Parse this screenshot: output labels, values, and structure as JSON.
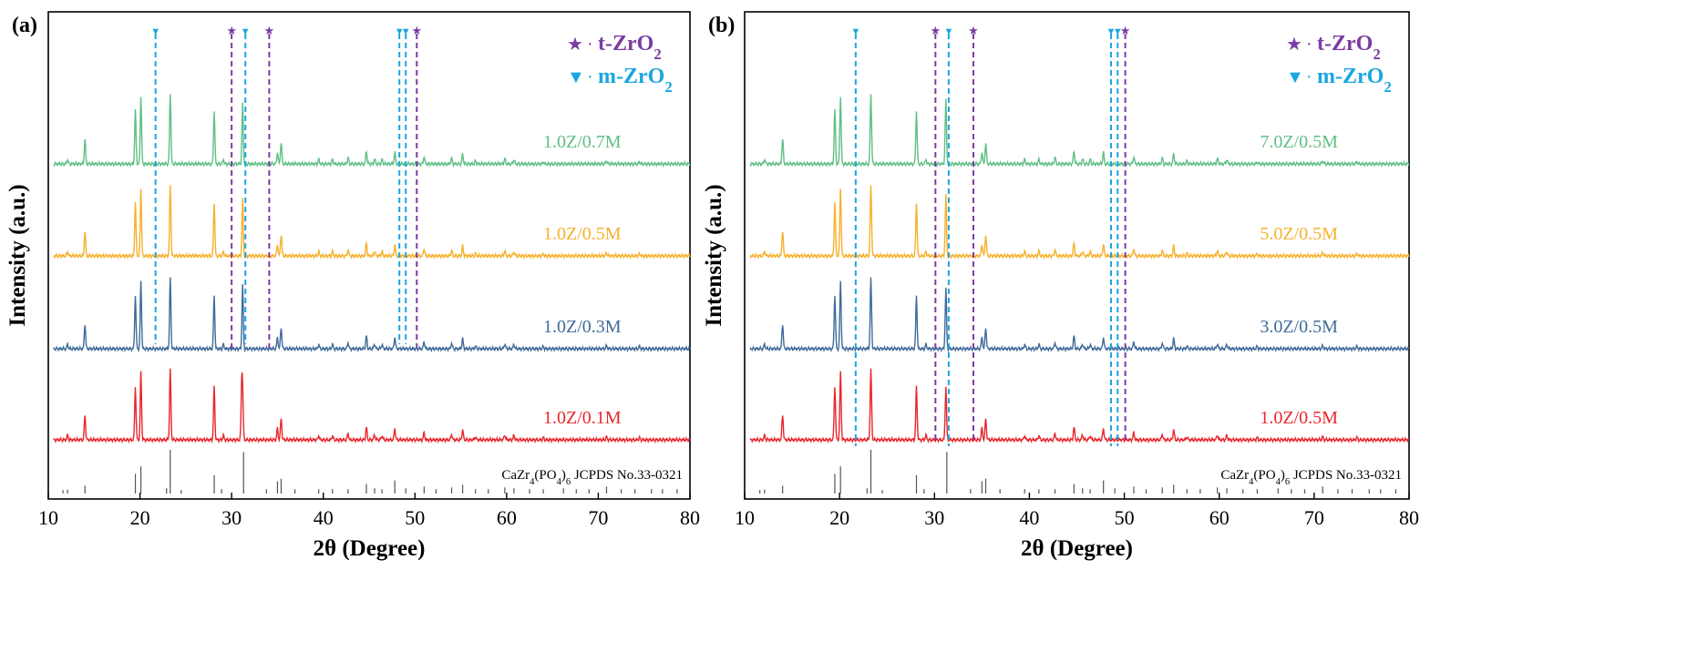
{
  "chart_data": [
    {
      "type": "line",
      "panel_label": "(a)",
      "xlabel": "2θ (Degree)",
      "ylabel": "Intensity (a.u.)",
      "xlim": [
        10,
        80
      ],
      "xticks": [
        10,
        20,
        30,
        40,
        50,
        60,
        70,
        80
      ],
      "y_ticks_shown": false,
      "legend": [
        {
          "marker": "★",
          "label": "t-ZrO2",
          "color": "#7a3ca2"
        },
        {
          "marker": "▼",
          "label": "m-ZrO2",
          "color": "#1aa6e0"
        }
      ],
      "reference_label": "CaZr4(PO4)6 JCPDS No.33-0321",
      "reference_peaks": [
        {
          "x": 11.6,
          "h": 0.08
        },
        {
          "x": 12.1,
          "h": 0.09
        },
        {
          "x": 14.0,
          "h": 0.18
        },
        {
          "x": 19.5,
          "h": 0.45
        },
        {
          "x": 20.1,
          "h": 0.62
        },
        {
          "x": 22.9,
          "h": 0.12
        },
        {
          "x": 23.3,
          "h": 1.0
        },
        {
          "x": 24.5,
          "h": 0.08
        },
        {
          "x": 28.1,
          "h": 0.42
        },
        {
          "x": 28.9,
          "h": 0.1
        },
        {
          "x": 31.3,
          "h": 0.95
        },
        {
          "x": 33.8,
          "h": 0.1
        },
        {
          "x": 35.0,
          "h": 0.28
        },
        {
          "x": 35.4,
          "h": 0.34
        },
        {
          "x": 36.9,
          "h": 0.1
        },
        {
          "x": 39.5,
          "h": 0.1
        },
        {
          "x": 41.0,
          "h": 0.1
        },
        {
          "x": 42.7,
          "h": 0.1
        },
        {
          "x": 44.7,
          "h": 0.22
        },
        {
          "x": 45.6,
          "h": 0.12
        },
        {
          "x": 46.4,
          "h": 0.1
        },
        {
          "x": 47.8,
          "h": 0.3
        },
        {
          "x": 49.0,
          "h": 0.12
        },
        {
          "x": 51.0,
          "h": 0.16
        },
        {
          "x": 52.3,
          "h": 0.1
        },
        {
          "x": 54.0,
          "h": 0.14
        },
        {
          "x": 55.2,
          "h": 0.2
        },
        {
          "x": 56.6,
          "h": 0.1
        },
        {
          "x": 58.0,
          "h": 0.1
        },
        {
          "x": 59.8,
          "h": 0.14
        },
        {
          "x": 60.8,
          "h": 0.12
        },
        {
          "x": 62.5,
          "h": 0.1
        },
        {
          "x": 64.0,
          "h": 0.1
        },
        {
          "x": 66.2,
          "h": 0.12
        },
        {
          "x": 67.6,
          "h": 0.1
        },
        {
          "x": 69.0,
          "h": 0.1
        },
        {
          "x": 70.9,
          "h": 0.16
        },
        {
          "x": 72.5,
          "h": 0.1
        },
        {
          "x": 74.0,
          "h": 0.1
        },
        {
          "x": 75.8,
          "h": 0.1
        },
        {
          "x": 77.0,
          "h": 0.1
        },
        {
          "x": 78.6,
          "h": 0.1
        }
      ],
      "phase_markers": [
        {
          "x": 21.7,
          "phase": "m-ZrO2"
        },
        {
          "x": 30.0,
          "phase": "t-ZrO2"
        },
        {
          "x": 31.5,
          "phase": "m-ZrO2"
        },
        {
          "x": 34.1,
          "phase": "t-ZrO2"
        },
        {
          "x": 48.3,
          "phase": "m-ZrO2"
        },
        {
          "x": 49.0,
          "phase": "m-ZrO2"
        },
        {
          "x": 50.2,
          "phase": "t-ZrO2"
        }
      ],
      "series": [
        {
          "name": "1.0Z/0.1M",
          "color": "#e8262b",
          "peak_scale": 1.0,
          "m_phase": 0.0
        },
        {
          "name": "1.0Z/0.3M",
          "color": "#3f6b9a",
          "peak_scale": 1.0,
          "m_phase": 0.35
        },
        {
          "name": "1.0Z/0.5M",
          "color": "#f6b12d",
          "peak_scale": 1.0,
          "m_phase": 0.25
        },
        {
          "name": "1.0Z/0.7M",
          "color": "#5fbf86",
          "peak_scale": 1.0,
          "m_phase": 0.3
        }
      ]
    },
    {
      "type": "line",
      "panel_label": "(b)",
      "xlabel": "2θ (Degree)",
      "ylabel": "Intensity (a.u.)",
      "xlim": [
        10,
        80
      ],
      "xticks": [
        10,
        20,
        30,
        40,
        50,
        60,
        70,
        80
      ],
      "y_ticks_shown": false,
      "legend": [
        {
          "marker": "★",
          "label": "t-ZrO2",
          "color": "#7a3ca2"
        },
        {
          "marker": "▼",
          "label": "m-ZrO2",
          "color": "#1aa6e0"
        }
      ],
      "reference_label": "CaZr4(PO4)6 JCPDS No.33-0321",
      "reference_peaks": [
        {
          "x": 11.6,
          "h": 0.08
        },
        {
          "x": 12.1,
          "h": 0.09
        },
        {
          "x": 14.0,
          "h": 0.18
        },
        {
          "x": 19.5,
          "h": 0.45
        },
        {
          "x": 20.1,
          "h": 0.62
        },
        {
          "x": 22.9,
          "h": 0.12
        },
        {
          "x": 23.3,
          "h": 1.0
        },
        {
          "x": 24.5,
          "h": 0.08
        },
        {
          "x": 28.1,
          "h": 0.42
        },
        {
          "x": 28.9,
          "h": 0.1
        },
        {
          "x": 31.3,
          "h": 0.95
        },
        {
          "x": 33.8,
          "h": 0.1
        },
        {
          "x": 35.0,
          "h": 0.28
        },
        {
          "x": 35.4,
          "h": 0.34
        },
        {
          "x": 36.9,
          "h": 0.1
        },
        {
          "x": 39.5,
          "h": 0.1
        },
        {
          "x": 41.0,
          "h": 0.1
        },
        {
          "x": 42.7,
          "h": 0.1
        },
        {
          "x": 44.7,
          "h": 0.22
        },
        {
          "x": 45.6,
          "h": 0.12
        },
        {
          "x": 46.4,
          "h": 0.1
        },
        {
          "x": 47.8,
          "h": 0.3
        },
        {
          "x": 49.0,
          "h": 0.12
        },
        {
          "x": 51.0,
          "h": 0.16
        },
        {
          "x": 52.3,
          "h": 0.1
        },
        {
          "x": 54.0,
          "h": 0.14
        },
        {
          "x": 55.2,
          "h": 0.2
        },
        {
          "x": 56.6,
          "h": 0.1
        },
        {
          "x": 58.0,
          "h": 0.1
        },
        {
          "x": 59.8,
          "h": 0.14
        },
        {
          "x": 60.8,
          "h": 0.12
        },
        {
          "x": 62.5,
          "h": 0.1
        },
        {
          "x": 64.0,
          "h": 0.1
        },
        {
          "x": 66.2,
          "h": 0.12
        },
        {
          "x": 67.6,
          "h": 0.1
        },
        {
          "x": 69.0,
          "h": 0.1
        },
        {
          "x": 70.9,
          "h": 0.16
        },
        {
          "x": 72.5,
          "h": 0.1
        },
        {
          "x": 74.0,
          "h": 0.1
        },
        {
          "x": 75.8,
          "h": 0.1
        },
        {
          "x": 77.0,
          "h": 0.1
        },
        {
          "x": 78.6,
          "h": 0.1
        }
      ],
      "phase_markers": [
        {
          "x": 21.7,
          "phase": "m-ZrO2"
        },
        {
          "x": 30.1,
          "phase": "t-ZrO2"
        },
        {
          "x": 31.5,
          "phase": "m-ZrO2"
        },
        {
          "x": 34.1,
          "phase": "t-ZrO2"
        },
        {
          "x": 48.6,
          "phase": "m-ZrO2"
        },
        {
          "x": 49.3,
          "phase": "m-ZrO2"
        },
        {
          "x": 50.1,
          "phase": "t-ZrO2"
        }
      ],
      "series": [
        {
          "name": "1.0Z/0.5M",
          "color": "#e8262b",
          "peak_scale": 1.0,
          "m_phase": 0.2
        },
        {
          "name": "3.0Z/0.5M",
          "color": "#3f6b9a",
          "peak_scale": 1.0,
          "m_phase": 0.3
        },
        {
          "name": "5.0Z/0.5M",
          "color": "#f6b12d",
          "peak_scale": 1.0,
          "m_phase": 0.3
        },
        {
          "name": "7.0Z/0.5M",
          "color": "#5fbf86",
          "peak_scale": 1.0,
          "m_phase": 0.35
        }
      ]
    }
  ]
}
